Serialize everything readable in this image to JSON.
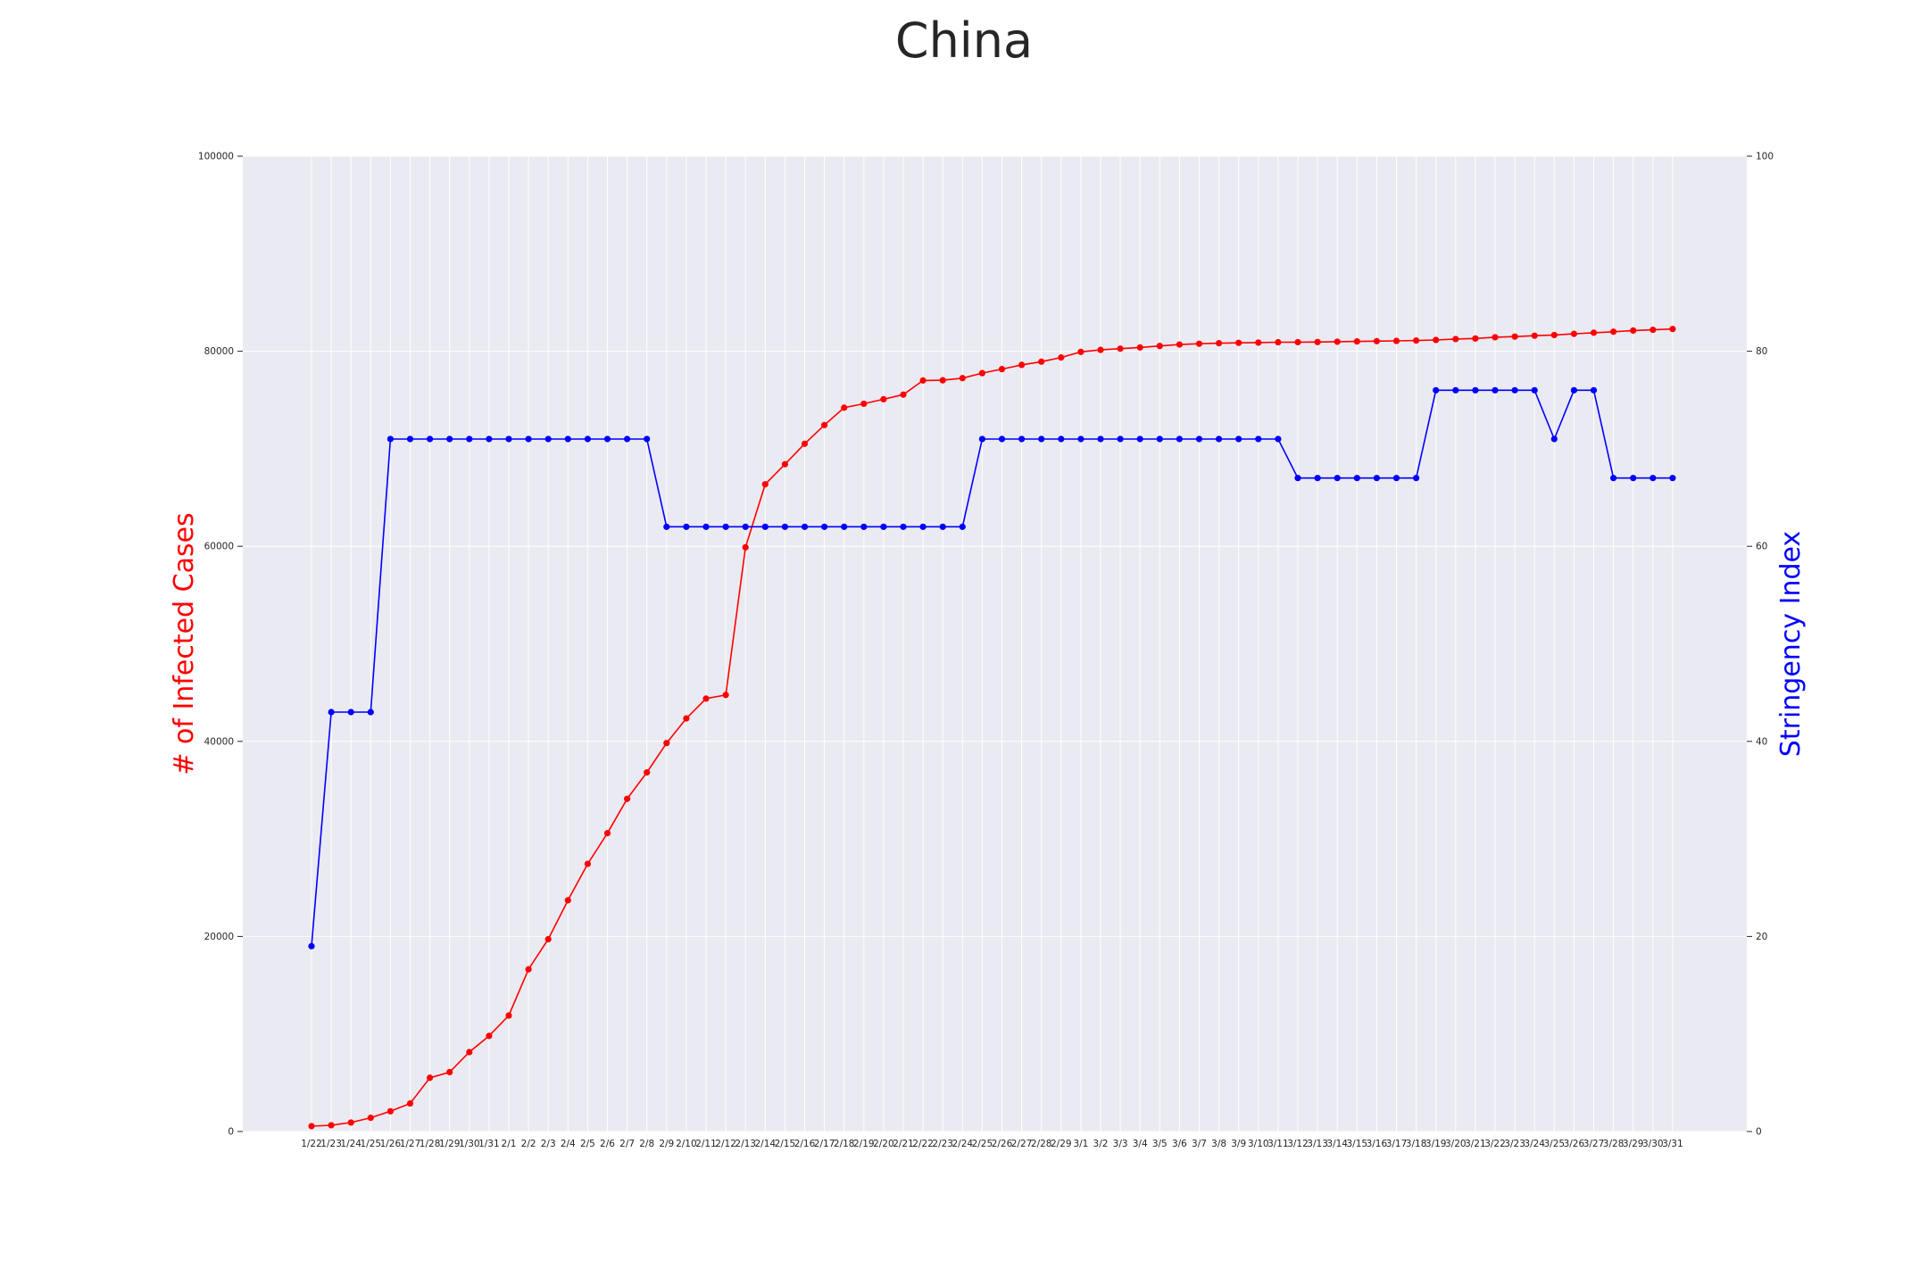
{
  "chart_data": {
    "type": "line",
    "title": "China",
    "ylabel_left": "# of Infected Cases",
    "ylabel_right": "Stringency Index",
    "ylim_left": [
      0,
      100000
    ],
    "ylim_right": [
      0,
      100
    ],
    "yticks_left": [
      "0",
      "20000",
      "40000",
      "60000",
      "80000",
      "100000"
    ],
    "yticks_right": [
      "0",
      "20",
      "40",
      "60",
      "80",
      "100"
    ],
    "grid": true,
    "categories": [
      "1/22",
      "1/23",
      "1/24",
      "1/25",
      "1/26",
      "1/27",
      "1/28",
      "1/29",
      "1/30",
      "1/31",
      "2/1",
      "2/2",
      "2/3",
      "2/4",
      "2/5",
      "2/6",
      "2/7",
      "2/8",
      "2/9",
      "2/10",
      "2/11",
      "2/12",
      "2/13",
      "2/14",
      "2/15",
      "2/16",
      "2/17",
      "2/18",
      "2/19",
      "2/20",
      "2/21",
      "2/22",
      "2/23",
      "2/24",
      "2/25",
      "2/26",
      "2/27",
      "2/28",
      "2/29",
      "3/1",
      "3/2",
      "3/3",
      "3/4",
      "3/5",
      "3/6",
      "3/7",
      "3/8",
      "3/9",
      "3/10",
      "3/11",
      "3/12",
      "3/13",
      "3/14",
      "3/15",
      "3/16",
      "3/17",
      "3/18",
      "3/19",
      "3/20",
      "3/21",
      "3/22",
      "3/23",
      "3/24",
      "3/25",
      "3/26",
      "3/27",
      "3/28",
      "3/29",
      "3/30",
      "3/31"
    ],
    "series": [
      {
        "axis": "left",
        "color": "#ff0000",
        "values": [
          548,
          643,
          920,
          1406,
          2075,
          2877,
          5509,
          6087,
          8141,
          9802,
          11891,
          16630,
          19716,
          23707,
          27440,
          30587,
          34110,
          36814,
          39829,
          42354,
          44386,
          44759,
          59895,
          66358,
          68413,
          70513,
          72434,
          74211,
          74619,
          75077,
          75550,
          77001,
          77022,
          77241,
          77754,
          78166,
          78600,
          78928,
          79356,
          79932,
          80136,
          80261,
          80386,
          80537,
          80690,
          80770,
          80823,
          80860,
          80887,
          80921,
          80932,
          80945,
          80977,
          81003,
          81033,
          81058,
          81102,
          81156,
          81250,
          81305,
          81435,
          81498,
          81591,
          81661,
          81782,
          81897,
          81999,
          82122,
          82198,
          82279
        ]
      },
      {
        "axis": "right",
        "color": "#0000ff",
        "values": [
          19,
          43,
          43,
          43,
          71,
          71,
          71,
          71,
          71,
          71,
          71,
          71,
          71,
          71,
          71,
          71,
          71,
          71,
          62,
          62,
          62,
          62,
          62,
          62,
          62,
          62,
          62,
          62,
          62,
          62,
          62,
          62,
          62,
          62,
          71,
          71,
          71,
          71,
          71,
          71,
          71,
          71,
          71,
          71,
          71,
          71,
          71,
          71,
          71,
          71,
          67,
          67,
          67,
          67,
          67,
          67,
          67,
          76,
          76,
          76,
          76,
          76,
          76,
          71,
          76,
          76,
          67,
          67,
          67,
          67
        ]
      }
    ]
  }
}
